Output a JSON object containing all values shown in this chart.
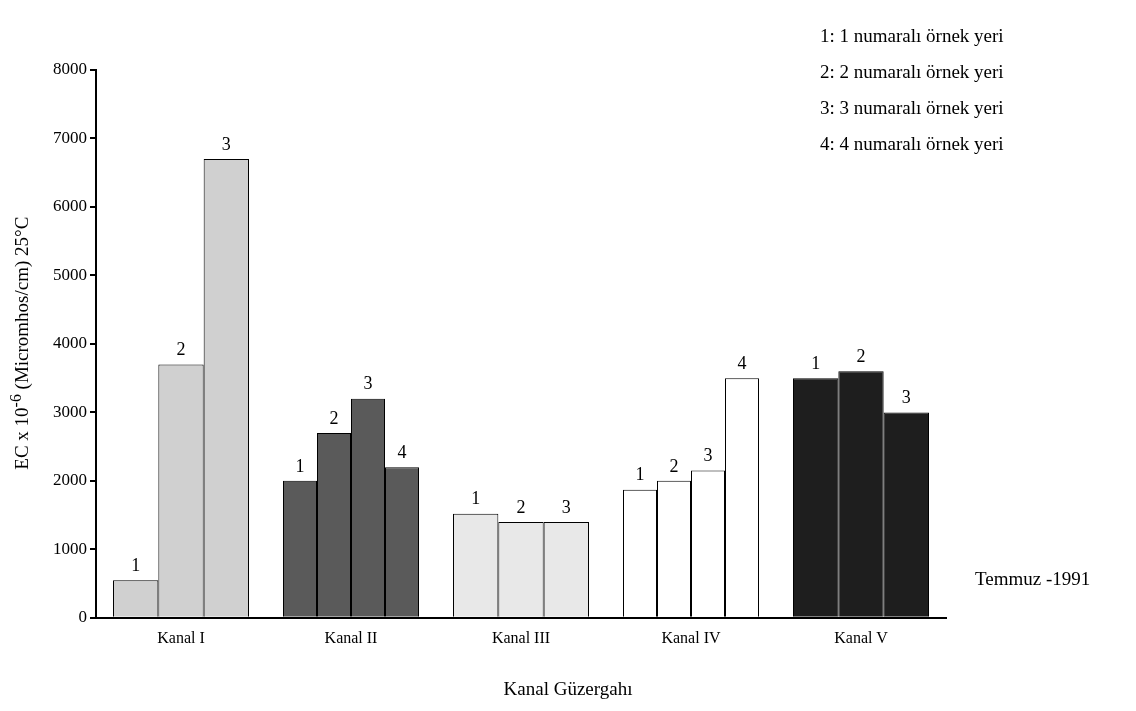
{
  "chart_data": {
    "type": "bar",
    "categories": [
      "Kanal I",
      "Kanal II",
      "Kanal III",
      "Kanal IV",
      "Kanal V"
    ],
    "series": [
      {
        "name": "1",
        "colors": [
          "#d0d0d0",
          "#5a5a5a",
          "#e8e8e8",
          "#ffffff",
          "#1e1e1e"
        ],
        "values": [
          550,
          2000,
          1520,
          1870,
          3500
        ]
      },
      {
        "name": "2",
        "colors": [
          "#d0d0d0",
          "#5a5a5a",
          "#e8e8e8",
          "#ffffff",
          "#1e1e1e"
        ],
        "values": [
          3700,
          2700,
          1400,
          2000,
          3600
        ]
      },
      {
        "name": "3",
        "colors": [
          "#d0d0d0",
          "#5a5a5a",
          "#e8e8e8",
          "#ffffff",
          "#1e1e1e"
        ],
        "values": [
          6700,
          3200,
          1400,
          2150,
          3000
        ]
      },
      {
        "name": "4",
        "colors": [
          "#d0d0d0",
          "#5a5a5a",
          "#e8e8e8",
          "#ffffff",
          "#1e1e1e"
        ],
        "values": [
          null,
          2200,
          null,
          3500,
          null
        ]
      }
    ],
    "xlabel": "Kanal Güzergahı",
    "ylabel": "EC x 10$^{-6}$ (Micromhos/cm) 25°C",
    "ylim": [
      0,
      8000
    ],
    "yticks": [
      0,
      1000,
      2000,
      3000,
      4000,
      5000,
      6000,
      7000,
      8000
    ],
    "grid": false,
    "legend": false,
    "annotations": [
      "1: 1 numaralı örnek yeri",
      "2: 2 numaralı örnek yeri",
      "3: 3 numaralı örnek yeri",
      "4: 4 numaralı örnek yeri",
      "Temmuz -1991"
    ]
  }
}
